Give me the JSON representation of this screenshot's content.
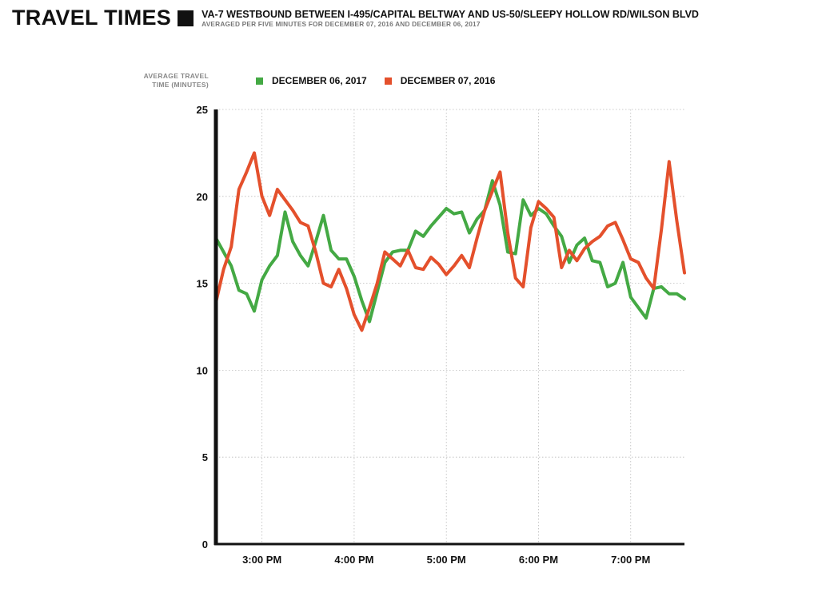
{
  "header": {
    "title": "TRAVEL TIMES",
    "subtitle": "VA-7 WESTBOUND BETWEEN I-495/CAPITAL BELTWAY AND US-50/SLEEPY HOLLOW RD/WILSON BLVD",
    "caption": "AVERAGED PER FIVE MINUTES FOR DECEMBER 07, 2016 AND DECEMBER 06, 2017"
  },
  "chart_data": {
    "type": "line",
    "title": "TRAVEL TIMES",
    "ylabel_line1": "AVERAGE TRAVEL",
    "ylabel_line2": "TIME (MINUTES)",
    "xlabel": "",
    "x_start": "2:30 PM",
    "x_step_minutes": 5,
    "xlim_minutes_from_2pm": [
      30,
      335
    ],
    "ylim": [
      0,
      25
    ],
    "yticks": [
      0,
      5,
      10,
      15,
      20,
      25
    ],
    "xticks": [
      {
        "label": "3:00 PM",
        "minutes": 60
      },
      {
        "label": "4:00 PM",
        "minutes": 120
      },
      {
        "label": "5:00 PM",
        "minutes": 180
      },
      {
        "label": "6:00 PM",
        "minutes": 240
      },
      {
        "label": "7:00 PM",
        "minutes": 300
      }
    ],
    "grid": true,
    "legend_position": "top-left",
    "series": [
      {
        "name": "DECEMBER 06, 2017",
        "color": "#44a944",
        "values": [
          17.6,
          16.8,
          16.0,
          14.6,
          14.4,
          13.4,
          15.2,
          16.0,
          16.6,
          19.1,
          17.4,
          16.6,
          16.0,
          17.4,
          18.9,
          16.9,
          16.4,
          16.4,
          15.4,
          14.0,
          12.8,
          14.5,
          16.2,
          16.8,
          16.9,
          16.9,
          18.0,
          17.7,
          18.3,
          18.8,
          19.3,
          19.0,
          19.1,
          17.9,
          18.7,
          19.2,
          20.9,
          19.5,
          16.8,
          16.7,
          19.8,
          18.9,
          19.3,
          19.0,
          18.3,
          17.7,
          16.2,
          17.2,
          17.6,
          16.3,
          16.2,
          14.8,
          15.0,
          16.2,
          14.2,
          13.6,
          13.0,
          14.7,
          14.8,
          14.4,
          14.4,
          14.1
        ]
      },
      {
        "name": "DECEMBER 07, 2016",
        "color": "#e4502c",
        "values": [
          13.9,
          15.8,
          17.1,
          20.4,
          21.4,
          22.5,
          20.0,
          18.9,
          20.4,
          19.8,
          19.2,
          18.5,
          18.3,
          16.8,
          15.0,
          14.8,
          15.8,
          14.7,
          13.2,
          12.3,
          13.6,
          15.0,
          16.8,
          16.4,
          16.0,
          16.9,
          15.9,
          15.8,
          16.5,
          16.1,
          15.5,
          16.0,
          16.6,
          15.9,
          17.6,
          19.2,
          20.3,
          21.4,
          17.9,
          15.3,
          14.8,
          18.2,
          19.7,
          19.3,
          18.8,
          15.9,
          16.9,
          16.3,
          17.0,
          17.4,
          17.7,
          18.3,
          18.5,
          17.5,
          16.4,
          16.2,
          15.3,
          14.7,
          18.1,
          22.0,
          18.6,
          15.6
        ]
      }
    ]
  }
}
